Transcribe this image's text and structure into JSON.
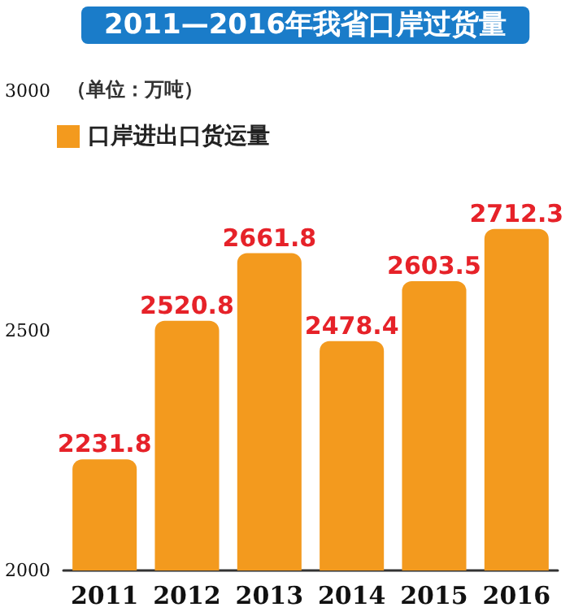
{
  "chart_data": {
    "type": "bar",
    "title": "2011—2016年我省口岸过货量",
    "subtitle": "（单位：万吨）",
    "categories": [
      "2011",
      "2012",
      "2013",
      "2014",
      "2015",
      "2016"
    ],
    "series": [
      {
        "name": "口岸进出口货运量",
        "color": "#f39a1e",
        "values": [
          2231.8,
          2520.8,
          2661.8,
          2478.4,
          2603.5,
          2712.3
        ]
      }
    ],
    "ylim": [
      2000,
      3000
    ],
    "yticks": [
      2000,
      2500,
      3000
    ],
    "data_labels": true,
    "legend": "top left",
    "grid": false
  }
}
